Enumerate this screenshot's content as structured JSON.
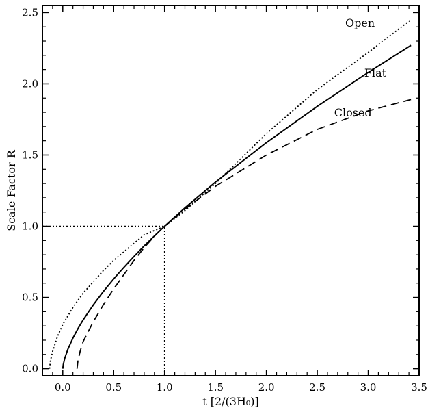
{
  "chart_data": {
    "type": "line",
    "xlabel": "t [2/(3H₀)]",
    "ylabel": "Scale Factor R",
    "xlim": [
      -0.2,
      3.5
    ],
    "ylim": [
      -0.05,
      2.55
    ],
    "xticks": [
      0.0,
      0.5,
      1.0,
      1.5,
      2.0,
      2.5,
      3.0,
      3.5
    ],
    "xtick_labels": [
      "0.0",
      "0.5",
      "1.0",
      "1.5",
      "2.0",
      "2.5",
      "3.0",
      "3.5"
    ],
    "yticks": [
      0.0,
      0.5,
      1.0,
      1.5,
      2.0,
      2.5
    ],
    "ytick_labels": [
      "0.0",
      "0.5",
      "1.0",
      "1.5",
      "2.0",
      "2.5"
    ],
    "grid": false,
    "series": [
      {
        "name": "Open",
        "style": "dotted",
        "x": [
          -0.13,
          -0.12,
          -0.1,
          -0.05,
          0.0,
          0.1,
          0.2,
          0.3,
          0.4,
          0.5,
          0.6,
          0.7,
          0.8,
          0.9,
          1.0,
          1.2,
          1.5,
          2.0,
          2.5,
          3.0,
          3.42
        ],
        "y": [
          0.0,
          0.06,
          0.12,
          0.23,
          0.31,
          0.43,
          0.53,
          0.61,
          0.69,
          0.76,
          0.82,
          0.88,
          0.94,
          0.97,
          1.0,
          1.11,
          1.3,
          1.65,
          1.96,
          2.22,
          2.45
        ]
      },
      {
        "name": "Flat",
        "style": "solid",
        "x": [
          0.0,
          0.005,
          0.02,
          0.05,
          0.1,
          0.15,
          0.2,
          0.3,
          0.4,
          0.5,
          0.6,
          0.7,
          0.8,
          0.9,
          1.0,
          1.2,
          1.5,
          2.0,
          2.5,
          3.0,
          3.42
        ],
        "y": [
          0.0,
          0.029,
          0.074,
          0.136,
          0.215,
          0.282,
          0.342,
          0.448,
          0.543,
          0.63,
          0.711,
          0.788,
          0.862,
          0.932,
          1.0,
          1.129,
          1.31,
          1.587,
          1.842,
          2.08,
          2.27
        ]
      },
      {
        "name": "Closed",
        "style": "dashed",
        "x": [
          0.14,
          0.15,
          0.17,
          0.2,
          0.3,
          0.4,
          0.5,
          0.6,
          0.7,
          0.8,
          0.9,
          1.0,
          1.2,
          1.5,
          2.0,
          2.5,
          3.0,
          3.42
        ],
        "y": [
          0.0,
          0.06,
          0.12,
          0.19,
          0.33,
          0.45,
          0.56,
          0.66,
          0.76,
          0.85,
          0.93,
          1.0,
          1.12,
          1.28,
          1.5,
          1.68,
          1.81,
          1.89
        ]
      }
    ],
    "guides": [
      {
        "x": [
          -0.2,
          1.0
        ],
        "y": [
          1.0,
          1.0
        ],
        "style": "dotted"
      },
      {
        "x": [
          1.0,
          1.0
        ],
        "y": [
          -0.05,
          1.0
        ],
        "style": "dotted"
      }
    ],
    "annotations": [
      {
        "text": "Open",
        "x": 2.92,
        "y": 2.43
      },
      {
        "text": "Flat",
        "x": 3.07,
        "y": 2.08
      },
      {
        "text": "Closed",
        "x": 2.85,
        "y": 1.8
      }
    ]
  }
}
